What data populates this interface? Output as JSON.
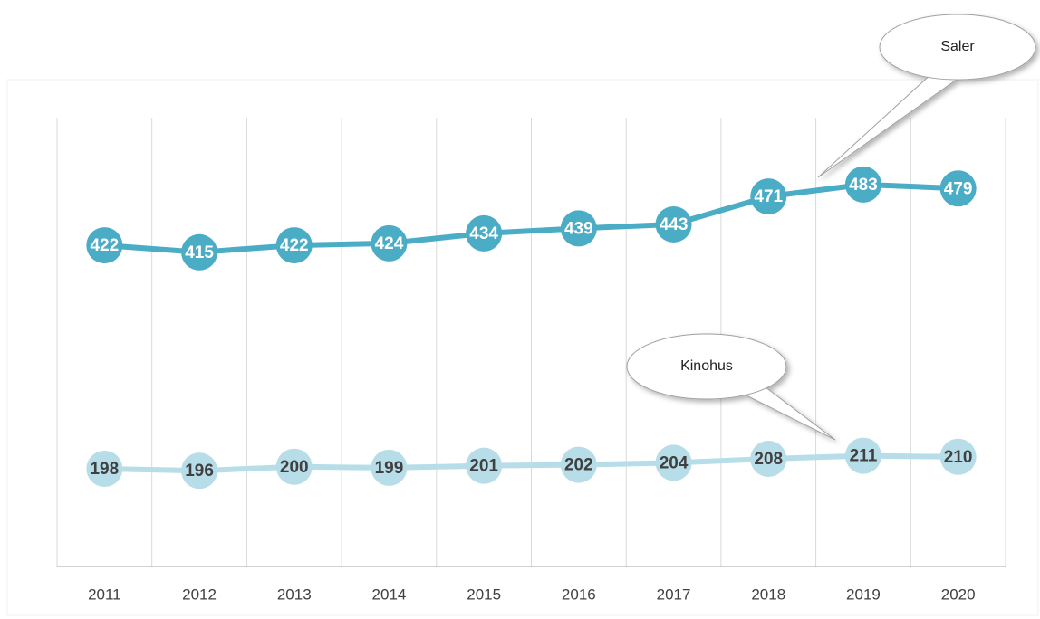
{
  "chart_data": {
    "type": "line",
    "categories": [
      "2011",
      "2012",
      "2013",
      "2014",
      "2015",
      "2016",
      "2017",
      "2018",
      "2019",
      "2020"
    ],
    "series": [
      {
        "name": "Saler",
        "color": "#4bacc6",
        "values": [
          422,
          415,
          422,
          424,
          434,
          439,
          443,
          471,
          483,
          479
        ]
      },
      {
        "name": "Kinohus",
        "color": "#b7dde8",
        "values": [
          198,
          196,
          200,
          199,
          201,
          202,
          204,
          208,
          211,
          210
        ]
      }
    ],
    "ylim": [
      100,
      550
    ]
  }
}
